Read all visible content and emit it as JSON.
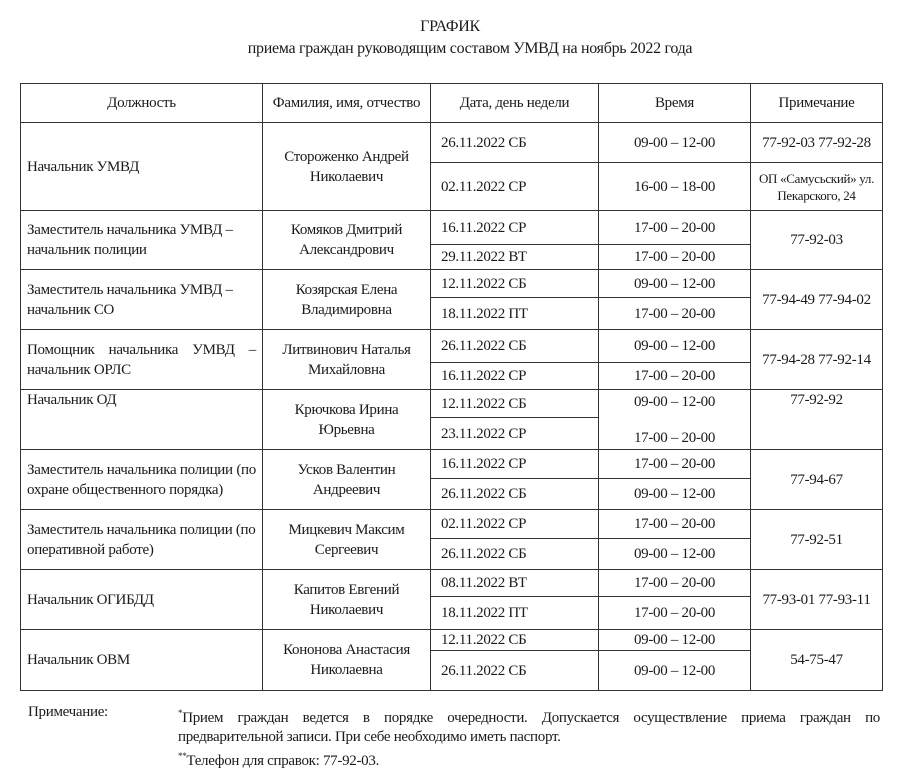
{
  "header": {
    "title": "ГРАФИК",
    "subtitle": "приема граждан руководящим составом УМВД на ноябрь 2022 года"
  },
  "table": {
    "columns": [
      "Должность",
      "Фамилия, имя, отчество",
      "Дата, день недели",
      "Время",
      "Примечание"
    ],
    "rows": [
      {
        "position": "Начальник УМВД",
        "name": "Стороженко Андрей Николаевич",
        "sessions": [
          {
            "date": "26.11.2022  СБ",
            "time": "09-00 – 12-00",
            "note": "77-92-03 77-92-28"
          },
          {
            "date": "02.11.2022  СР",
            "time": "16-00 – 18-00",
            "note": "ОП «Самусьский» ул. Пекарского, 24"
          }
        ]
      },
      {
        "position": "Заместитель начальника УМВД – начальник полиции",
        "name": "Комяков Дмитрий Александрович",
        "sessions": [
          {
            "date": "16.11.2022  СР",
            "time": "17-00 – 20-00"
          },
          {
            "date": "29.11.2022 ВТ",
            "time": "17-00 – 20-00"
          }
        ],
        "note": "77-92-03"
      },
      {
        "position": "Заместитель начальника УМВД – начальник СО",
        "name": "Козярская Елена Владимировна",
        "sessions": [
          {
            "date": "12.11.2022 СБ",
            "time": "09-00 – 12-00"
          },
          {
            "date": "18.11.2022 ПТ",
            "time": "17-00 – 20-00"
          }
        ],
        "note": "77-94-49 77-94-02"
      },
      {
        "position": "Помощник начальника УМВД – начальник ОРЛС",
        "name": "Литвинович Наталья Михайловна",
        "sessions": [
          {
            "date": "26.11.2022 СБ",
            "time": "09-00 – 12-00"
          },
          {
            "date": "16.11.2022 СР",
            "time": "17-00 – 20-00"
          }
        ],
        "note": "77-94-28 77-92-14"
      },
      {
        "position": "Начальник ОД",
        "name": "Крючкова Ирина Юрьевна",
        "sessions": [
          {
            "date": "12.11.2022 СБ",
            "time": "09-00 – 12-00"
          },
          {
            "date": "23.11.2022  СР",
            "time": "17-00 – 20-00"
          }
        ],
        "note": "77-92-92"
      },
      {
        "position": "Заместитель начальника полиции (по охране общественного порядка)",
        "name": "Усков Валентин Андреевич",
        "sessions": [
          {
            "date": "16.11.2022  СР",
            "time": "17-00 – 20-00"
          },
          {
            "date": "26.11.2022  СБ",
            "time": "09-00 – 12-00"
          }
        ],
        "note": "77-94-67"
      },
      {
        "position": "Заместитель начальника полиции (по оперативной работе)",
        "name": "Мицкевич Максим Сергеевич",
        "sessions": [
          {
            "date": "02.11.2022  СР",
            "time": "17-00 – 20-00"
          },
          {
            "date": "26.11.2022 СБ",
            "time": "09-00 – 12-00"
          }
        ],
        "note": "77-92-51"
      },
      {
        "position": "Начальник ОГИБДД",
        "name": "Капитов Евгений Николаевич",
        "sessions": [
          {
            "date": "08.11.2022 ВТ",
            "time": "17-00 – 20-00"
          },
          {
            "date": "18.11.2022 ПТ",
            "time": "17-00 – 20-00"
          }
        ],
        "note": "77-93-01 77-93-11"
      },
      {
        "position": "Начальник ОВМ",
        "name": "Кононова Анастасия Николаевна",
        "sessions": [
          {
            "date": "12.11.2022 СБ",
            "time": "09-00 – 12-00"
          },
          {
            "date": "26.11.2022 СБ",
            "time": "09-00 – 12-00"
          }
        ],
        "note": "54-75-47"
      }
    ]
  },
  "footer": {
    "label": "Примечание:",
    "note1": "Прием граждан ведется в порядке очередности. Допускается осуществление приема граждан по предварительной записи. При себе необходимо иметь паспорт.",
    "note2": "Телефон для справок: 77-92-03."
  }
}
